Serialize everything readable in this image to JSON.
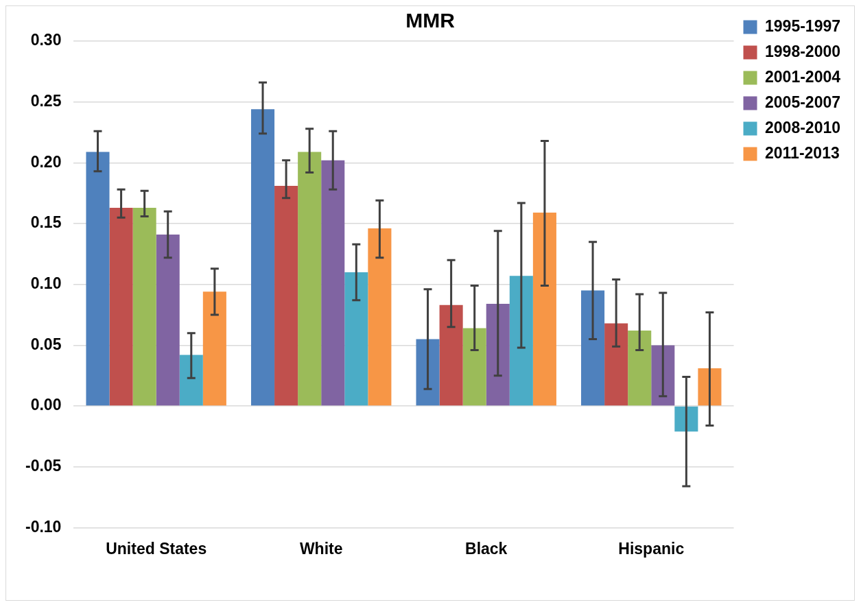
{
  "chart_data": {
    "type": "bar",
    "title": "MMR",
    "categories": [
      "United States",
      "White",
      "Black",
      "Hispanic"
    ],
    "series": [
      {
        "name": "1995-1997",
        "color": "#4f81bd",
        "values": [
          0.209,
          0.244,
          0.055,
          0.095
        ],
        "errors": [
          [
            0.193,
            0.226
          ],
          [
            0.224,
            0.266
          ],
          [
            0.014,
            0.096
          ],
          [
            0.055,
            0.135
          ]
        ]
      },
      {
        "name": "1998-2000",
        "color": "#c0504d",
        "values": [
          0.163,
          0.181,
          0.083,
          0.068
        ],
        "errors": [
          [
            0.155,
            0.178
          ],
          [
            0.171,
            0.202
          ],
          [
            0.065,
            0.12
          ],
          [
            0.049,
            0.104
          ]
        ]
      },
      {
        "name": "2001-2004",
        "color": "#9bbb59",
        "values": [
          0.163,
          0.209,
          0.064,
          0.062
        ],
        "errors": [
          [
            0.156,
            0.177
          ],
          [
            0.192,
            0.228
          ],
          [
            0.046,
            0.099
          ],
          [
            0.046,
            0.092
          ]
        ]
      },
      {
        "name": "2005-2007",
        "color": "#8064a2",
        "values": [
          0.141,
          0.202,
          0.084,
          0.05
        ],
        "errors": [
          [
            0.122,
            0.16
          ],
          [
            0.178,
            0.226
          ],
          [
            0.025,
            0.144
          ],
          [
            0.008,
            0.093
          ]
        ]
      },
      {
        "name": "2008-2010",
        "color": "#4bacc6",
        "values": [
          0.042,
          0.11,
          0.107,
          -0.021
        ],
        "errors": [
          [
            0.023,
            0.06
          ],
          [
            0.087,
            0.133
          ],
          [
            0.048,
            0.167
          ],
          [
            -0.066,
            0.024
          ]
        ]
      },
      {
        "name": "2011-2013",
        "color": "#f79646",
        "values": [
          0.094,
          0.146,
          0.159,
          0.031
        ],
        "errors": [
          [
            0.075,
            0.113
          ],
          [
            0.122,
            0.169
          ],
          [
            0.099,
            0.218
          ],
          [
            -0.016,
            0.077
          ]
        ]
      }
    ],
    "ylim": [
      -0.1,
      0.3
    ],
    "yticks": [
      {
        "value": -0.1,
        "label": "-0.10"
      },
      {
        "value": -0.05,
        "label": "-0.05"
      },
      {
        "value": 0,
        "label": "0.00"
      },
      {
        "value": 0.05,
        "label": "0.05"
      },
      {
        "value": 0.1,
        "label": "0.10"
      },
      {
        "value": 0.15,
        "label": "0.15"
      },
      {
        "value": 0.2,
        "label": "0.20"
      },
      {
        "value": 0.25,
        "label": "0.25"
      },
      {
        "value": 0.3,
        "label": "0.30"
      }
    ],
    "grid": "y",
    "legend": "right"
  }
}
